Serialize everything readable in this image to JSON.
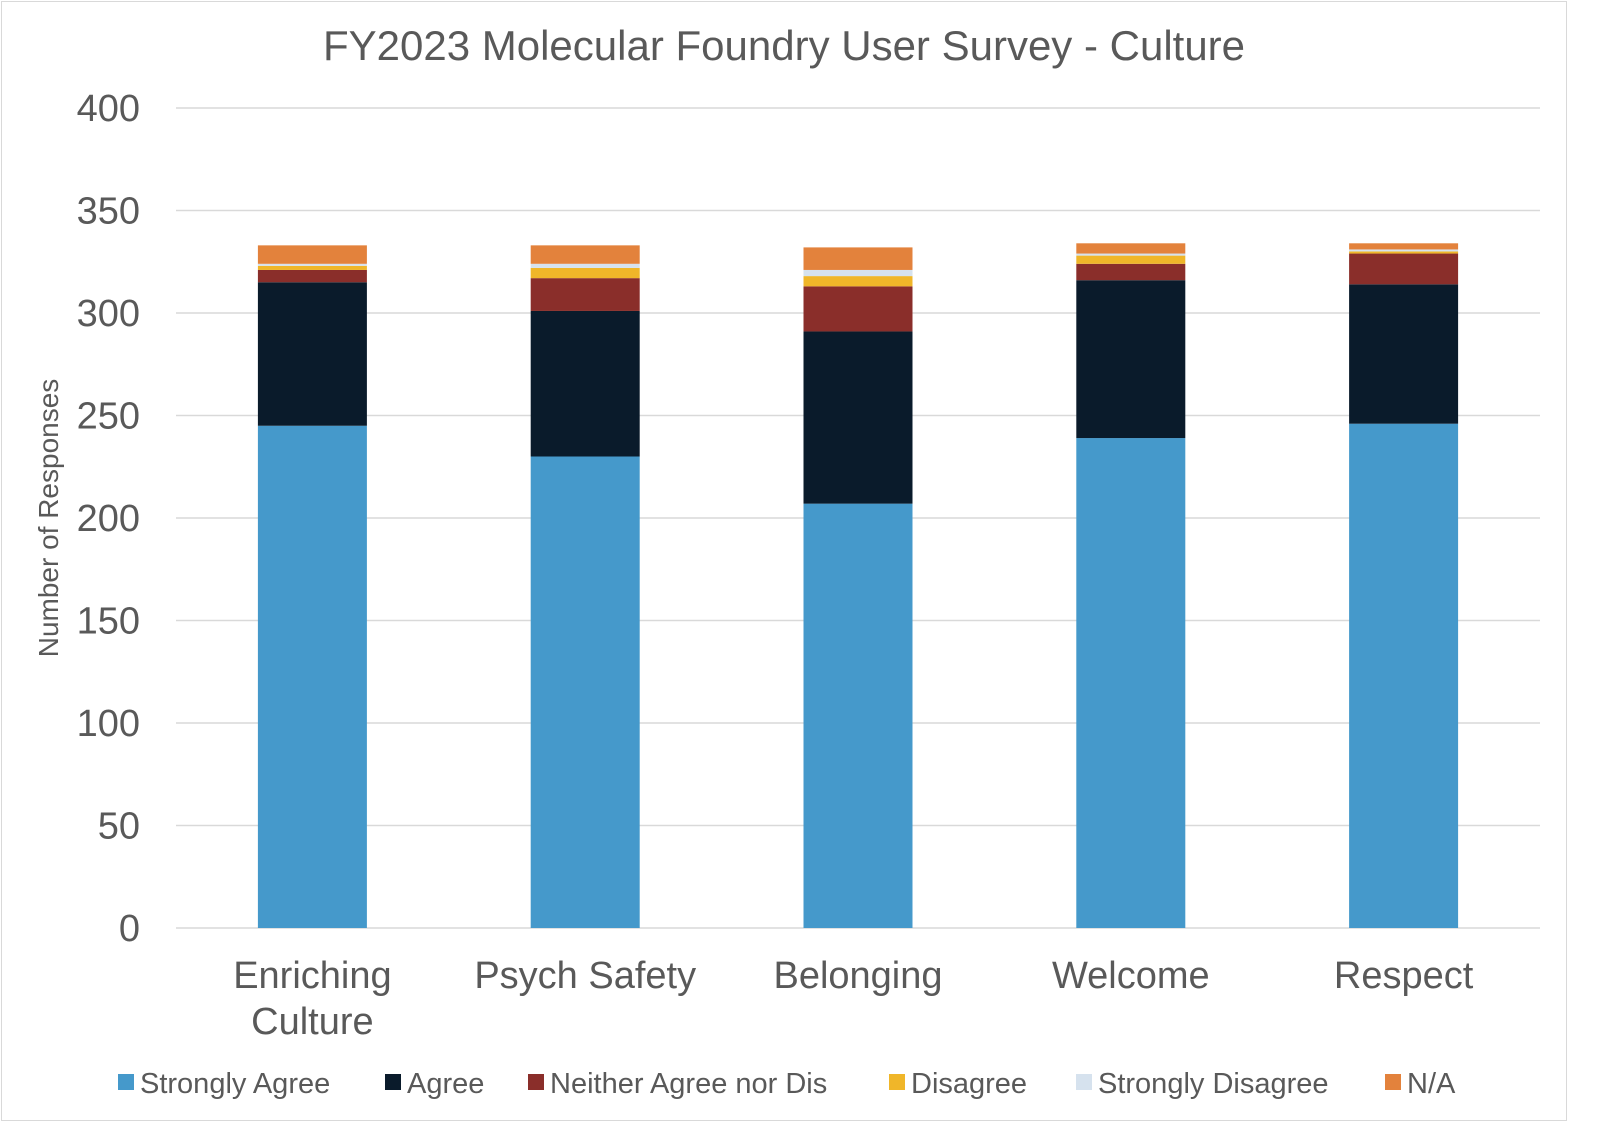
{
  "chart_data": {
    "type": "bar",
    "stacked": true,
    "title": "FY2023 Molecular Foundry User Survey - Culture",
    "xlabel": "",
    "ylabel": "Number of Responses",
    "ylim": [
      0,
      400
    ],
    "yticks": [
      0,
      50,
      100,
      150,
      200,
      250,
      300,
      350,
      400
    ],
    "grid": true,
    "legend_position": "bottom",
    "categories": [
      "Enriching Culture",
      "Psych Safety",
      "Belonging",
      "Welcome",
      "Respect"
    ],
    "category_lines": [
      [
        "Enriching",
        "Culture"
      ],
      [
        "Psych Safety"
      ],
      [
        "Belonging"
      ],
      [
        "Welcome"
      ],
      [
        "Respect"
      ]
    ],
    "series": [
      {
        "name": "Strongly Agree",
        "color": "#4599cb",
        "values": [
          245,
          230,
          207,
          239,
          246
        ]
      },
      {
        "name": "Agree",
        "color": "#0a1b2b",
        "values": [
          70,
          71,
          84,
          77,
          68
        ]
      },
      {
        "name": "Neither Agree nor Dis",
        "color": "#8a2e2a",
        "values": [
          6,
          16,
          22,
          8,
          15
        ]
      },
      {
        "name": "Disagree",
        "color": "#f0b629",
        "values": [
          2,
          5,
          5,
          4,
          1
        ]
      },
      {
        "name": "Strongly Disagree",
        "color": "#d6e2ee",
        "values": [
          1,
          2,
          3,
          1,
          1
        ]
      },
      {
        "name": "N/A",
        "color": "#e3823c",
        "values": [
          9,
          9,
          11,
          5,
          3
        ]
      }
    ]
  }
}
